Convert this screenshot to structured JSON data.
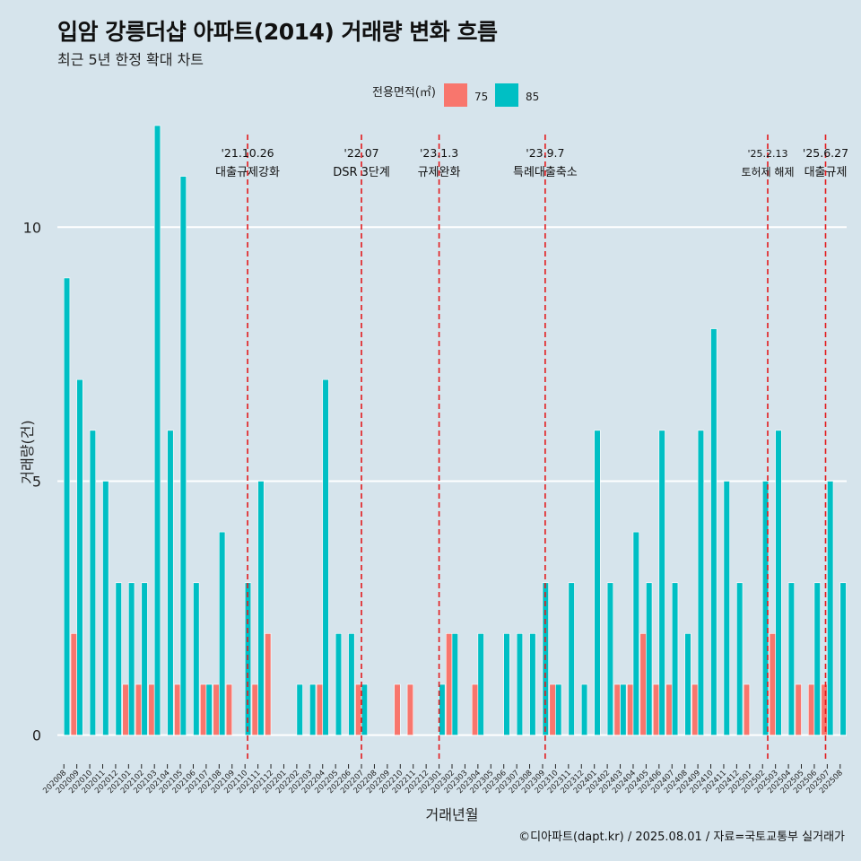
{
  "title": "입암 강릉더샵 아파트(2014) 거래량 변화 흐름",
  "subtitle": "최근 5년 한정 확대 차트",
  "caption": "©디아파트(dapt.kr) / 2025.08.01 / 자료=국토교통부 실거래가",
  "colors": {
    "background": "#d6e4ec",
    "s75": "#f8766d",
    "s85": "#00bfc4",
    "event_line": "#e31a1c",
    "grid": "#ffffff"
  },
  "chart_data": {
    "type": "bar",
    "stacking": "dodge",
    "title": "입암 강릉더샵 아파트(2014) 거래량 변화 흐름",
    "xlabel": "거래년월",
    "ylabel": "거래량(건)",
    "ylim": [
      -0.5,
      12
    ],
    "yticks": [
      0,
      5,
      10
    ],
    "legend": {
      "title": "전용면적(㎡)",
      "entries": [
        "75",
        "85"
      ],
      "position": "top"
    },
    "categories": [
      "202008",
      "202009",
      "202010",
      "202011",
      "202012",
      "202101",
      "202102",
      "202103",
      "202104",
      "202105",
      "202106",
      "202107",
      "202108",
      "202109",
      "202110",
      "202111",
      "202112",
      "202201",
      "202202",
      "202203",
      "202204",
      "202205",
      "202206",
      "202207",
      "202208",
      "202209",
      "202210",
      "202211",
      "202212",
      "202301",
      "202302",
      "202303",
      "202304",
      "202305",
      "202306",
      "202307",
      "202308",
      "202309",
      "202310",
      "202311",
      "202312",
      "202401",
      "202402",
      "202403",
      "202404",
      "202405",
      "202406",
      "202407",
      "202408",
      "202409",
      "202410",
      "202411",
      "202412",
      "202501",
      "202502",
      "202503",
      "202504",
      "202505",
      "202506",
      "202507",
      "202508"
    ],
    "series": [
      {
        "name": "75",
        "values": [
          0,
          2,
          0,
          0,
          0,
          1,
          1,
          1,
          0,
          1,
          0,
          1,
          1,
          1,
          0,
          1,
          2,
          0,
          0,
          0,
          1,
          0,
          0,
          1,
          0,
          0,
          1,
          1,
          0,
          0,
          2,
          0,
          1,
          0,
          0,
          0,
          0,
          0,
          1,
          0,
          0,
          0,
          0,
          1,
          1,
          2,
          1,
          1,
          0,
          1,
          0,
          0,
          0,
          1,
          0,
          2,
          0,
          1,
          1,
          1,
          0
        ]
      },
      {
        "name": "85",
        "values": [
          9,
          7,
          6,
          5,
          3,
          3,
          3,
          12,
          6,
          11,
          3,
          1,
          4,
          0,
          3,
          5,
          0,
          0,
          1,
          1,
          7,
          2,
          2,
          1,
          0,
          0,
          0,
          0,
          0,
          1,
          2,
          0,
          2,
          0,
          2,
          2,
          2,
          3,
          1,
          3,
          1,
          6,
          3,
          1,
          4,
          3,
          6,
          3,
          2,
          6,
          8,
          5,
          3,
          0,
          5,
          6,
          3,
          0,
          3,
          5,
          3
        ]
      }
    ],
    "events": [
      {
        "date": "'21.10.26",
        "label": "대출규제강화",
        "after": "202110",
        "offset": 0.2
      },
      {
        "date": "'22.07",
        "label": "DSR 3단계",
        "after": "202207",
        "offset": 0
      },
      {
        "date": "'23.1.3",
        "label": "규제완화",
        "after": "202301",
        "offset": 0
      },
      {
        "date": "'23.9.7",
        "label": "특례대출축소",
        "after": "202309",
        "offset": 0.2
      },
      {
        "date": "'25.2.13",
        "label": "토허제 해제",
        "after": "202502",
        "offset": 0.4
      },
      {
        "date": "'25.6.27",
        "label": "대출규제",
        "after": "202506",
        "offset": 0.87
      }
    ]
  }
}
